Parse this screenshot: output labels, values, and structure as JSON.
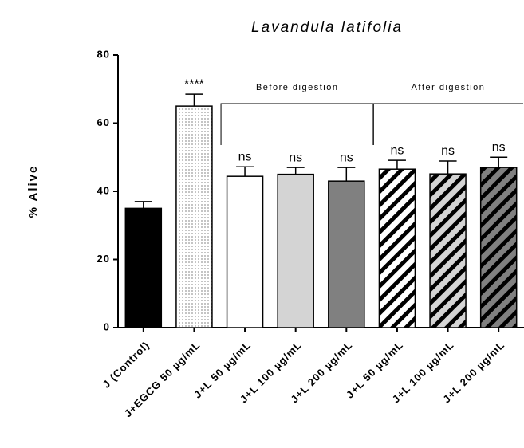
{
  "chart_data": {
    "type": "bar",
    "title": "Lavandula latifolia",
    "ylabel": "% Alive",
    "categories": [
      "J (Control)",
      "J+EGCG 50 µg/mL",
      "J+L 50 µg/mL",
      "J+L 100 µg/mL",
      "J+L 200 µg/mL",
      "J+L 50 µg/mL",
      "J+L 100 µg/mL",
      "J+L 200 µg/mL"
    ],
    "values": [
      35,
      65,
      44.4,
      45,
      43,
      46.5,
      45.1,
      47
    ],
    "errors": [
      2,
      3.5,
      2.8,
      2,
      4,
      2.6,
      3.8,
      3
    ],
    "colors": [
      "#000000",
      "#ffffff",
      "#ffffff",
      "#d4d4d4",
      "#808080",
      "#ffffff",
      "#d4d4d4",
      "#808080"
    ],
    "patterns": [
      "solid",
      "dots",
      "solid",
      "solid",
      "solid",
      "hatch",
      "hatch",
      "hatch"
    ],
    "significance": [
      null,
      "****",
      "ns",
      "ns",
      "ns",
      "ns",
      "ns",
      "ns"
    ],
    "brackets": [
      {
        "label": "Before digestion",
        "start": 2,
        "end": 4
      },
      {
        "label": "After digestion",
        "start": 5,
        "end": 7
      }
    ],
    "ylim": [
      0,
      80
    ],
    "yticks": [
      0,
      20,
      40,
      60,
      80
    ]
  }
}
